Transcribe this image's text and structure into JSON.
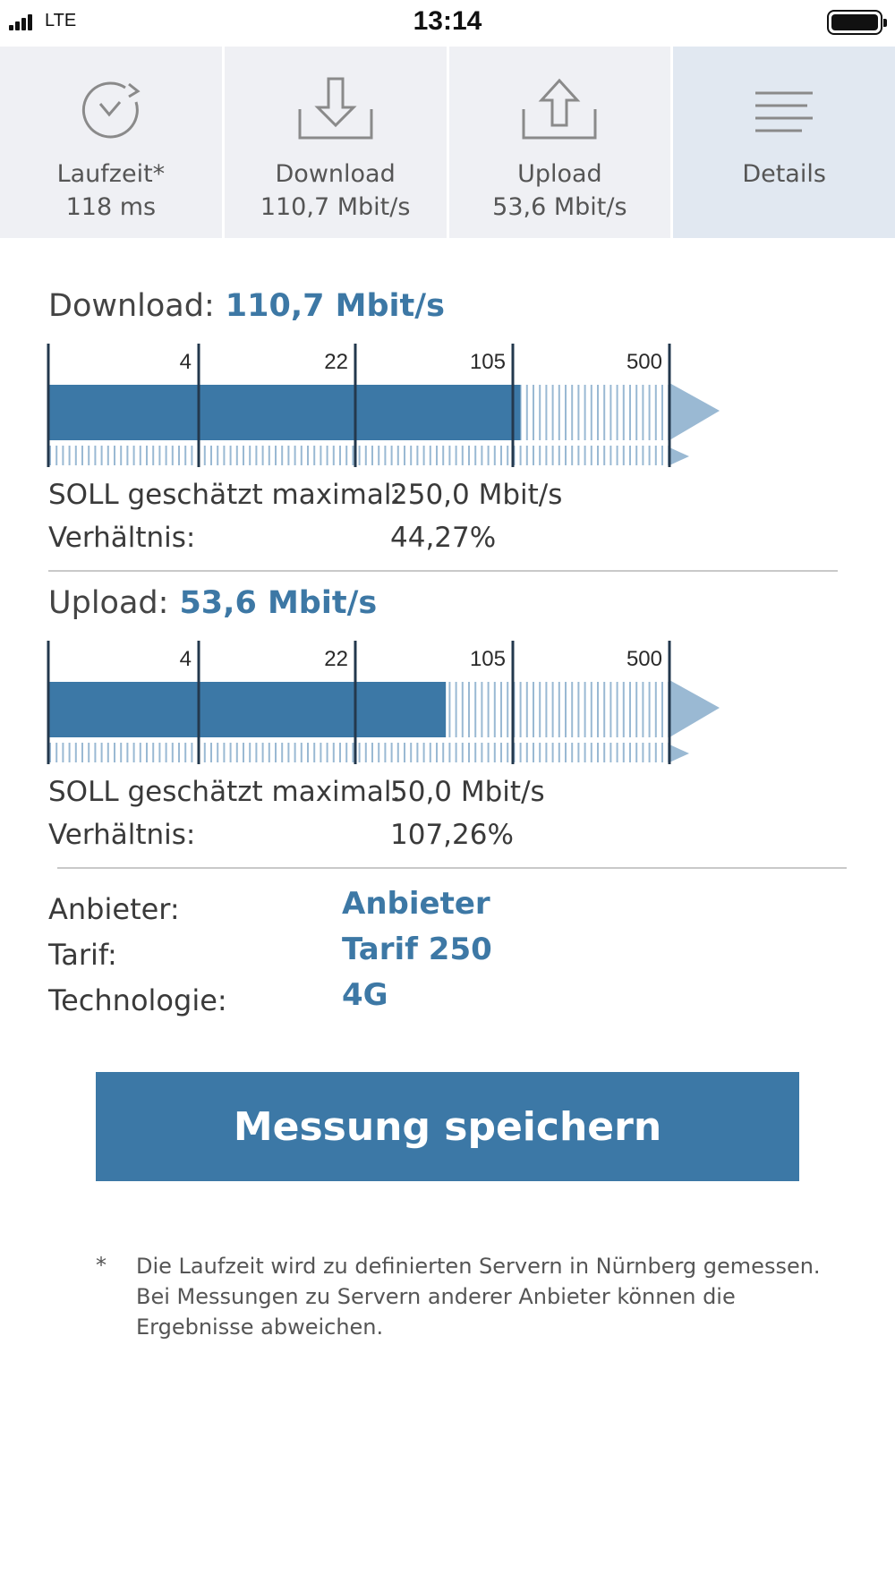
{
  "status_bar": {
    "carrier": "LTE",
    "time": "13:14"
  },
  "tabs": [
    {
      "icon": "latency-clock-icon",
      "label": "Laufzeit*",
      "value": "118 ms"
    },
    {
      "icon": "download-icon",
      "label": "Download",
      "value": "110,7 Mbit/s"
    },
    {
      "icon": "upload-icon",
      "label": "Upload",
      "value": "53,6 Mbit/s"
    },
    {
      "icon": "details-lines-icon",
      "label": "Details",
      "value": ""
    }
  ],
  "download": {
    "label": "Download:",
    "value": "110,7 Mbit/s",
    "ticks": [
      "4",
      "22",
      "105",
      "500"
    ],
    "fill_fraction": 0.76,
    "soll_label": "SOLL geschätzt maximal:",
    "soll_value": "250,0 Mbit/s",
    "ratio_label": "Verhältnis:",
    "ratio_value": "44,27%"
  },
  "upload": {
    "label": "Upload:",
    "value": "53,6 Mbit/s",
    "ticks": [
      "4",
      "22",
      "105",
      "500"
    ],
    "fill_fraction": 0.64,
    "soll_label": "SOLL geschätzt maximal:",
    "soll_value": "50,0 Mbit/s",
    "ratio_label": "Verhältnis:",
    "ratio_value": "107,26%"
  },
  "info": [
    {
      "label": "Anbieter:",
      "value": "Anbieter"
    },
    {
      "label": "Tarif:",
      "value": "Tarif 250"
    },
    {
      "label": "Technologie:",
      "value": "4G"
    }
  ],
  "save_button": {
    "label": "Messung speichern"
  },
  "footnote": {
    "marker": "*",
    "text": "Die Laufzeit wird zu definierten Servern in Nürnberg gemessen. Bei Messungen zu Servern anderer Anbieter können die Ergebnisse abweichen."
  },
  "colors": {
    "accent": "#3c78a6",
    "light_accent": "#9ab9d3",
    "tab_bg": "#eff0f4",
    "tab_active_bg": "#e1e8f1"
  }
}
